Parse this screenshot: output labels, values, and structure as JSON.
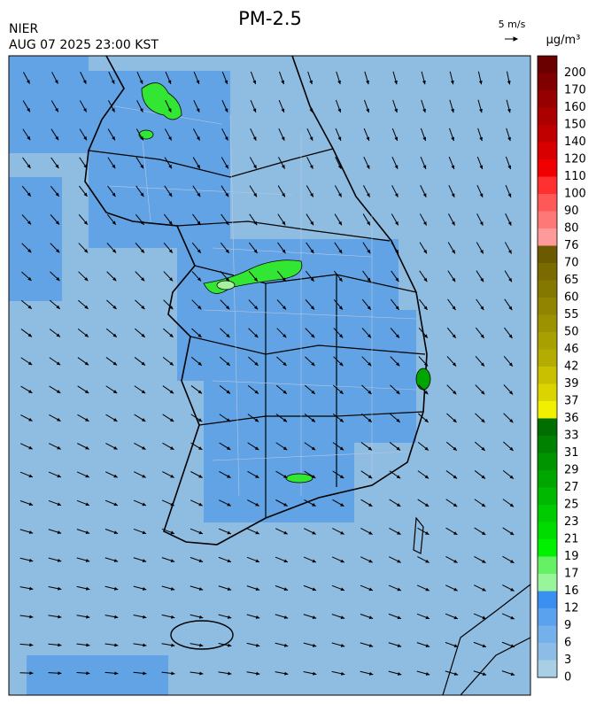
{
  "header": {
    "title": "PM-2.5",
    "source": "NIER",
    "time": "AUG 07 2025 23:00 KST",
    "wind_scale": "5 m/s"
  },
  "legend": {
    "unit": "μg/m³",
    "levels": [
      200,
      170,
      160,
      150,
      140,
      120,
      110,
      100,
      90,
      80,
      76,
      70,
      65,
      60,
      55,
      50,
      46,
      42,
      39,
      37,
      36,
      33,
      31,
      29,
      27,
      25,
      23,
      21,
      19,
      17,
      16,
      12,
      9,
      6,
      3,
      0
    ],
    "colors": [
      "#6a0000",
      "#800000",
      "#960000",
      "#aa0000",
      "#c00000",
      "#d80000",
      "#f00000",
      "#ff3030",
      "#ff5858",
      "#ff7878",
      "#ff9a9a",
      "#6b5a00",
      "#7a6a00",
      "#857800",
      "#908400",
      "#9c9200",
      "#a8a000",
      "#b4ac00",
      "#c8c000",
      "#dcd400",
      "#f0f000",
      "#006e00",
      "#008200",
      "#009400",
      "#00a600",
      "#00b800",
      "#00ca00",
      "#00dc00",
      "#00f000",
      "#66f066",
      "#99f599",
      "#3a8ff0",
      "#5aa2ee",
      "#74b0ea",
      "#8dbde6",
      "#a8cfe4"
    ]
  }
}
